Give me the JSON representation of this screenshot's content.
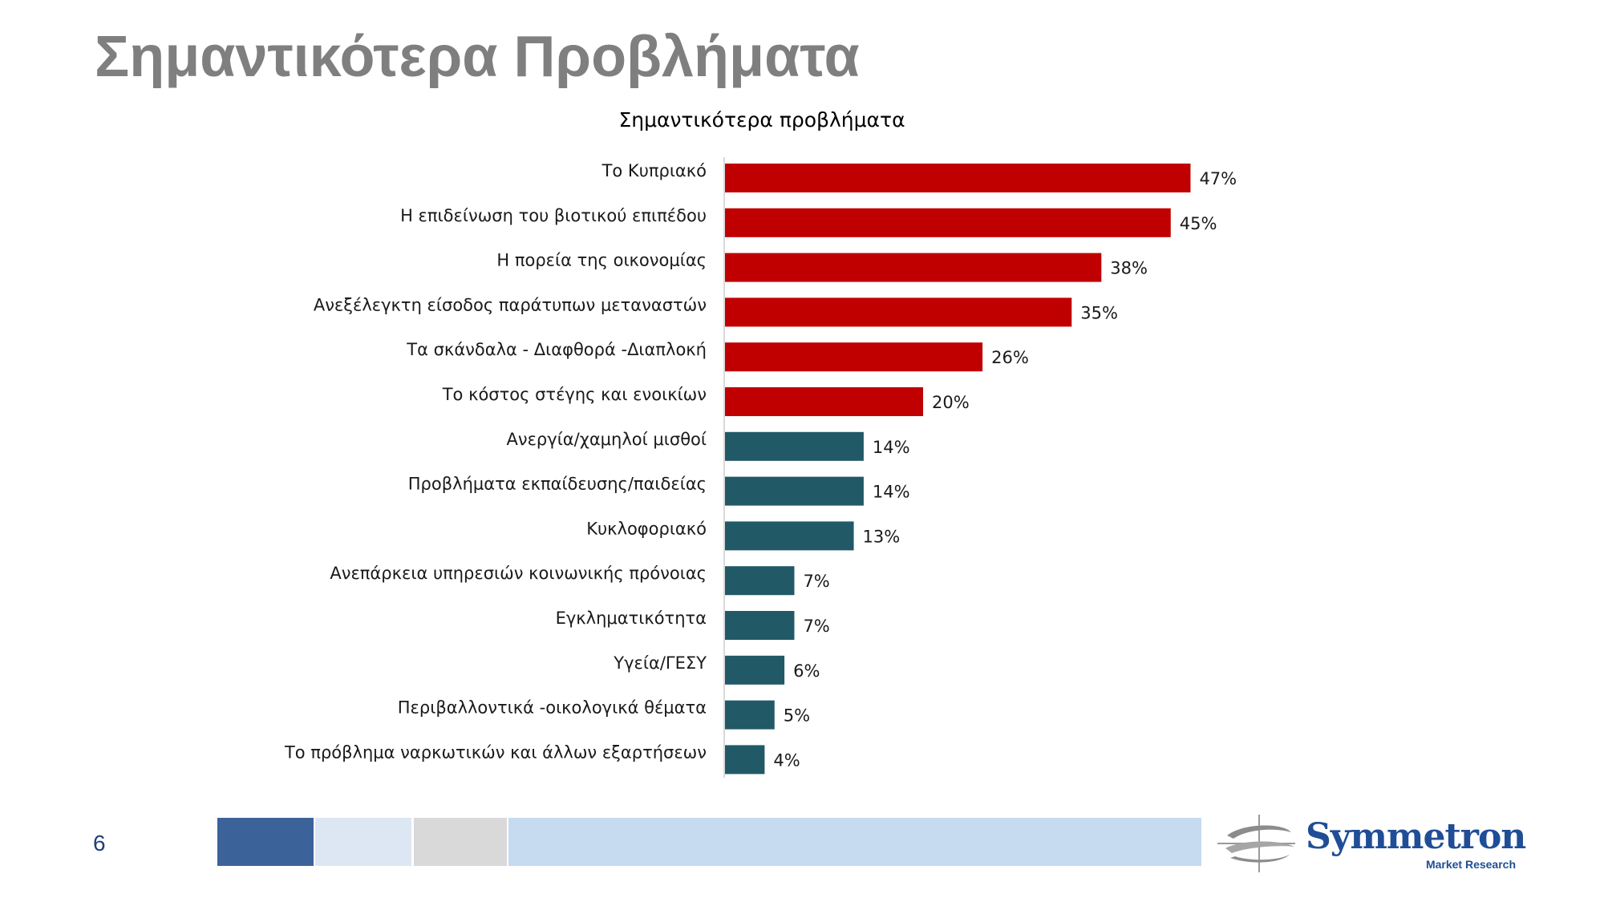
{
  "slide": {
    "title": "Σημαντικότερα Προβλήματα",
    "page_number": "6"
  },
  "logo": {
    "name": "Symmetron",
    "subtitle": "Market Research",
    "color": "#1f4e96"
  },
  "footer_colors": [
    "#3c6399",
    "#dde7f3",
    "#d9d9d9",
    "#c6daf0"
  ],
  "chart_data": {
    "type": "bar",
    "orientation": "horizontal",
    "title": "Σημαντικότερα προβλήματα",
    "xlabel": "",
    "ylabel": "",
    "xlim": [
      0,
      100
    ],
    "grid": false,
    "legend": "none",
    "value_suffix": "%",
    "colors": {
      "top": "#c00000",
      "rest": "#215967"
    },
    "categories": [
      "Το Κυπριακό",
      "Η επιδείνωση του βιοτικού επιπέδου",
      "Η πορεία της οικονομίας",
      "Ανεξέλεγκτη είσοδος παράτυπων μεταναστών",
      "Τα σκάνδαλα - Διαφθορά -Διαπλοκή",
      "Το κόστος στέγης και ενοικίων",
      "Ανεργία/χαμηλοί μισθοί",
      "Προβλήματα εκπαίδευσης/παιδείας",
      "Κυκλοφοριακό",
      "Ανεπάρκεια υπηρεσιών κοινωνικής πρόνοιας",
      "Εγκληματικότητα",
      "Υγεία/ΓΕΣΥ",
      "Περιβαλλοντικά -οικολογικά θέματα",
      "Το πρόβλημα ναρκωτικών και άλλων εξαρτήσεων"
    ],
    "values": [
      47,
      45,
      38,
      35,
      26,
      20,
      14,
      14,
      13,
      7,
      7,
      6,
      5,
      4
    ],
    "highlight": [
      true,
      true,
      true,
      true,
      true,
      true,
      false,
      false,
      false,
      false,
      false,
      false,
      false,
      false
    ]
  }
}
